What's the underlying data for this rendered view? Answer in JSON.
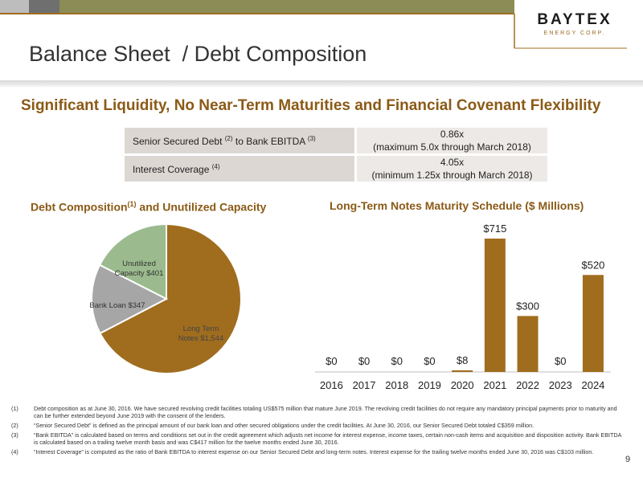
{
  "colors": {
    "accent": "#a06d1f",
    "brand_dark": "#8b5a16",
    "slide_gray": "#a6a6a6",
    "slide_green": "#9bbb8e"
  },
  "logo": {
    "name": "BAYTEX",
    "sub": "ENERGY CORP."
  },
  "page_title": "Balance Sheet  / Debt Composition",
  "headline": "Significant Liquidity, No Near-Term Maturities and Financial Covenant Flexibility",
  "covenants": [
    {
      "label": "Senior Secured Debt",
      "sup1": "(2)",
      "label_mid": " to Bank EBITDA",
      "sup2": "(3)",
      "value": "0.86x",
      "note": "(maximum 5.0x through March 2018)"
    },
    {
      "label": "Interest Coverage",
      "sup1": "(4)",
      "label_mid": "",
      "sup2": "",
      "value": "4.05x",
      "note": "(minimum 1.25x through March 2018)"
    }
  ],
  "chart_data": [
    {
      "type": "pie",
      "title": "Debt Composition",
      "title_sup": "(1)",
      "title_rest": " and Unutilized Capacity",
      "categories": [
        "Long Term Notes",
        "Bank Loan",
        "Unutilized Capacity"
      ],
      "labels": [
        [
          "Long Term",
          "Notes $1,544"
        ],
        [
          "Bank Loan $347"
        ],
        [
          "Unutilized",
          "Capacity $401"
        ]
      ],
      "values": [
        1544,
        347,
        401
      ],
      "colors": [
        "#a06d1f",
        "#a6a6a6",
        "#9bbb8e"
      ]
    },
    {
      "type": "bar",
      "title": "Long-Term Notes Maturity Schedule ($ Millions)",
      "categories": [
        "2016",
        "2017",
        "2018",
        "2019",
        "2020",
        "2021",
        "2022",
        "2023",
        "2024"
      ],
      "values": [
        0,
        0,
        0,
        0,
        8,
        715,
        300,
        0,
        520
      ],
      "data_labels": [
        "$0",
        "$0",
        "$0",
        "$0",
        "$8",
        "$715",
        "$300",
        "$0",
        "$520"
      ],
      "color": "#a06d1f"
    }
  ],
  "footnotes": [
    {
      "num": "(1)",
      "text": "Debt composition as at June 30, 2016. We have secured revolving credit facilities totaling US$575 million that mature June 2019. The revolving credit facilities do not require any mandatory principal payments prior to maturity and can be further extended beyond June 2019 with the consent of the lenders."
    },
    {
      "num": "(2)",
      "text": "“Senior Secured Debt” is defined as the principal amount of our bank loan and other secured obligations under the credit facilities. At June 30, 2016, our Senior Secured Debt totaled C$359 million."
    },
    {
      "num": "(3)",
      "text": "“Bank EBITDA” is calculated based on terms and conditions set out in the credit agreement which adjusts net income for interest expense, income taxes, certain non-cash items and acquisition and disposition activity. Bank EBITDA is calculated based on a trailing twelve month basis and was C$417 million for the twelve months ended June 30, 2016."
    },
    {
      "num": "(4)",
      "text": "“Interest Coverage” is computed as the ratio of Bank EBITDA to interest expense on our Senior Secured Debt and long-term notes. Interest expense for the trailing twelve months ended June 30, 2016 was C$103 million."
    }
  ],
  "page_number": "9"
}
